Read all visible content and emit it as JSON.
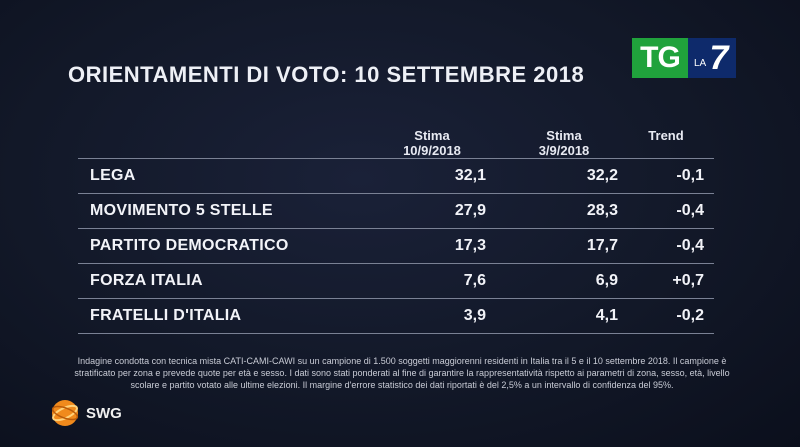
{
  "title": "ORIENTAMENTI DI VOTO: 10 SETTEMBRE 2018",
  "logo": {
    "tg": "TG",
    "la": "LA",
    "seven": "7",
    "brand_green": "#20a23c",
    "brand_blue": "#0e2a6b"
  },
  "columns": {
    "c1_line1": "Stima",
    "c1_line2": "10/9/2018",
    "c2_line1": "Stima",
    "c2_line2": "3/9/2018",
    "c3": "Trend"
  },
  "chart_data": {
    "type": "table",
    "title": "ORIENTAMENTI DI VOTO: 10 SETTEMBRE 2018",
    "columns": [
      "Stima 10/9/2018",
      "Stima 3/9/2018",
      "Trend"
    ],
    "rows": [
      {
        "party": "LEGA",
        "v1": "32,1",
        "v2": "32,2",
        "trend": "-0,1"
      },
      {
        "party": "MOVIMENTO 5 STELLE",
        "v1": "27,9",
        "v2": "28,3",
        "trend": "-0,4"
      },
      {
        "party": "PARTITO DEMOCRATICO",
        "v1": "17,3",
        "v2": "17,7",
        "trend": "-0,4"
      },
      {
        "party": "FORZA ITALIA",
        "v1": "7,6",
        "v2": "6,9",
        "trend": "+0,7"
      },
      {
        "party": "FRATELLI D'ITALIA",
        "v1": "3,9",
        "v2": "4,1",
        "trend": "-0,2"
      }
    ]
  },
  "note": {
    "line1": "Indagine condotta con tecnica mista CATI-CAMI-CAWI su un campione di 1.500 soggetti maggiorenni residenti in Italia tra il 5 e il 10 settembre 2018. Il campione è",
    "line2": "stratificato per zona e prevede quote per età e sesso. I dati sono stati ponderati al fine di garantire la rappresentatività rispetto ai parametri di zona, sesso, età, livello",
    "line3": "scolare e partito votato alle ultime elezioni. Il margine d'errore statistico dei dati riportati è del 2,5% a un intervallo di confidenza del 95%."
  },
  "swg": {
    "label": "SWG",
    "accent": "#f08a1c"
  }
}
